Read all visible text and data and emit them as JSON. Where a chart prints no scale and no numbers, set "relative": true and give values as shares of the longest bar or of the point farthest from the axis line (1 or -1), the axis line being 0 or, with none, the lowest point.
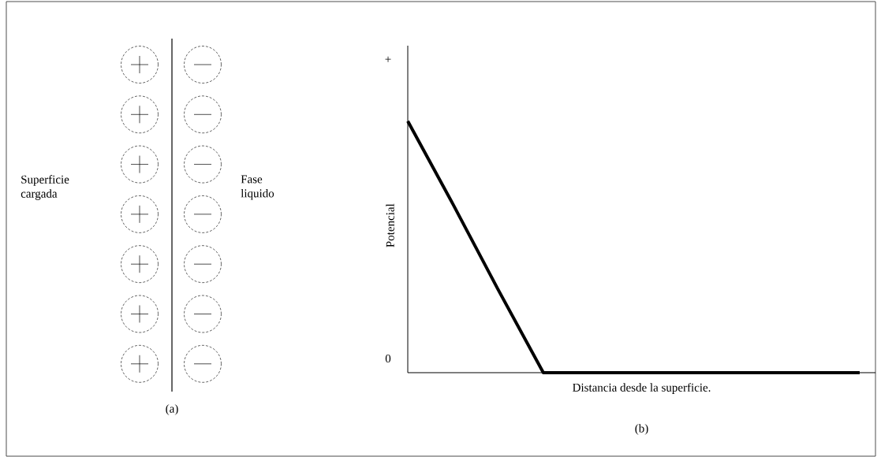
{
  "chart_data": [
    {
      "type": "other",
      "annotations": [
        "Superficie cargada",
        "Fase liquido",
        "(a)"
      ]
    },
    {
      "type": "line",
      "relative": true,
      "xlabel": "Distancia desde la superficie.",
      "ylabel": "Potencial",
      "annotations": [
        "+",
        "0",
        "(b)"
      ],
      "categories": [
        null,
        null,
        null,
        null,
        null,
        null,
        null,
        null,
        null,
        null,
        null
      ],
      "series": [
        {
          "values": [
            1,
            0.67,
            0.33,
            0,
            0,
            0,
            0,
            0,
            0,
            0,
            0
          ],
          "color": "#000000"
        }
      ],
      "marker": "none",
      "line_style": "solid"
    }
  ]
}
